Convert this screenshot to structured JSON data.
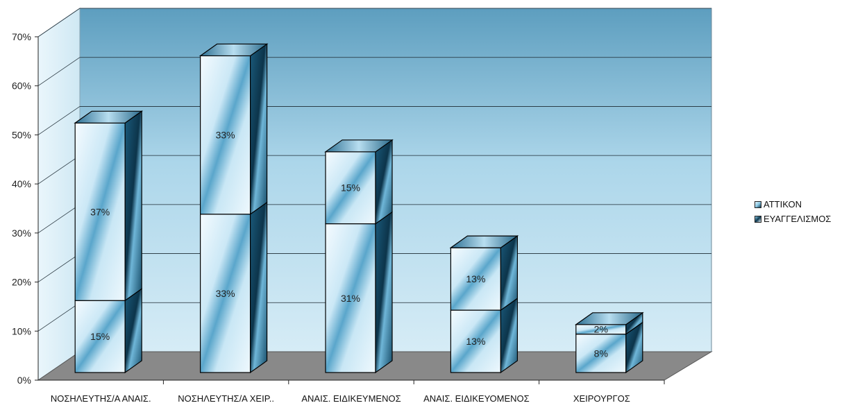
{
  "chart_data": {
    "type": "bar",
    "stacked": true,
    "three_d": true,
    "categories": [
      "ΝΟΣΗΛΕΥΤΗΣ/Α ΑΝΑΙΣ.",
      "ΝΟΣΗΛΕΥΤΗΣ/Α ΧΕΙΡ..",
      "ΑΝΑΙΣ. ΕΙΔΙΚΕΥΜΕΝΟΣ",
      "ΑΝΑΙΣ. ΕΙΔΙΚΕΥΟΜΕΝΟΣ",
      "ΧΕΙΡΟΥΡΓΟΣ"
    ],
    "series": [
      {
        "name": "ΕΥΑΓΓΕΛΙΣΜΟΣ",
        "values": [
          15,
          33,
          31,
          13,
          8
        ],
        "labels": [
          "15%",
          "33%",
          "31%",
          "13%",
          "8%"
        ]
      },
      {
        "name": "ΑΤΤΙΚΟΝ",
        "values": [
          37,
          33,
          15,
          13,
          2
        ],
        "labels": [
          "37%",
          "33%",
          "15%",
          "13%",
          "2%"
        ]
      }
    ],
    "yticks": [
      "0%",
      "10%",
      "20%",
      "30%",
      "40%",
      "50%",
      "60%",
      "70%"
    ],
    "ylim": [
      0,
      70
    ],
    "grid": true,
    "legend": {
      "position": "right",
      "entries": [
        "ΑΤΤΙΚΟΝ",
        "ΕΥΑΓΓΕΛΙΣΜΟΣ"
      ]
    },
    "colors": {
      "bar_light": "#e6f4fc",
      "bar_mid": "#8ecbe6",
      "bar_dark": "#0d3950",
      "wall_top": "#5e9fc0",
      "wall_mid": "#aed7ea",
      "floor": "#898989"
    }
  }
}
